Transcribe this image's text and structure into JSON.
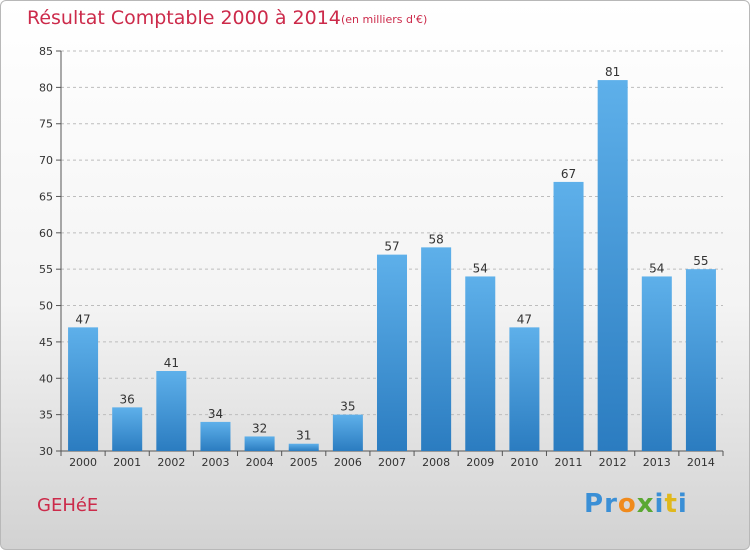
{
  "title": "Résultat Comptable 2000 à 2014",
  "subtitle": "(en milliers d'€)",
  "commune": "GEHéE",
  "logo": {
    "text": "Proxiti",
    "letter_colors": [
      "#3a8fd6",
      "#3a8fd6",
      "#f08a1c",
      "#5aa832",
      "#3a8fd6",
      "#e0b81c",
      "#3a8fd6"
    ]
  },
  "colors": {
    "title": "#cc2a4a",
    "bar_light": "#5eb0ea",
    "bar_dark": "#2b7cc0",
    "grid": "#bdbdbd"
  },
  "chart_data": {
    "type": "bar",
    "title": "Résultat Comptable 2000 à 2014",
    "xlabel": "",
    "ylabel": "",
    "categories": [
      "2000",
      "2001",
      "2002",
      "2003",
      "2004",
      "2005",
      "2006",
      "2007",
      "2008",
      "2009",
      "2010",
      "2011",
      "2012",
      "2013",
      "2014"
    ],
    "values": [
      47,
      36,
      41,
      34,
      32,
      31,
      35,
      57,
      58,
      54,
      47,
      67,
      81,
      54,
      55
    ],
    "ylim": [
      30,
      85
    ],
    "yticks": [
      30,
      35,
      40,
      45,
      50,
      55,
      60,
      65,
      70,
      75,
      80,
      85
    ],
    "grid": true,
    "legend": "none"
  }
}
